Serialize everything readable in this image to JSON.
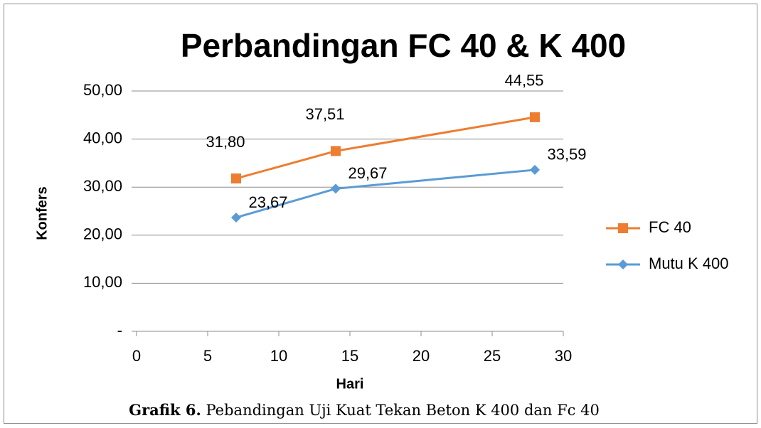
{
  "chart_data": {
    "type": "line",
    "title": "Perbandingan FC 40 & K 400",
    "x_label": "Hari",
    "y_label": "Konfers",
    "caption_label": "Grafik 6.",
    "caption_text": "Pebandingan Uji Kuat Tekan Beton K 400 dan Fc 40",
    "x": [
      7,
      14,
      28
    ],
    "series": [
      {
        "name": "FC 40",
        "color": "#ED7D31",
        "marker": "square",
        "values": [
          31.8,
          37.51,
          44.55
        ],
        "value_labels": [
          "31,80",
          "37,51",
          "44,55"
        ]
      },
      {
        "name": "Mutu K 400",
        "color": "#5B9BD5",
        "marker": "diamond",
        "values": [
          23.67,
          29.67,
          33.59
        ],
        "value_labels": [
          "23,67",
          "29,67",
          "33,59"
        ]
      }
    ],
    "xlim": [
      0,
      30
    ],
    "xticks": [
      0,
      5,
      10,
      15,
      20,
      25,
      30
    ],
    "ylim": [
      0,
      50
    ],
    "yticks": [
      {
        "value": 0,
        "label": "-"
      },
      {
        "value": 10,
        "label": "10,00"
      },
      {
        "value": 20,
        "label": "20,00"
      },
      {
        "value": 30,
        "label": "30,00"
      },
      {
        "value": 40,
        "label": "40,00"
      },
      {
        "value": 50,
        "label": "50,00"
      }
    ],
    "grid": true,
    "legend": "right"
  }
}
